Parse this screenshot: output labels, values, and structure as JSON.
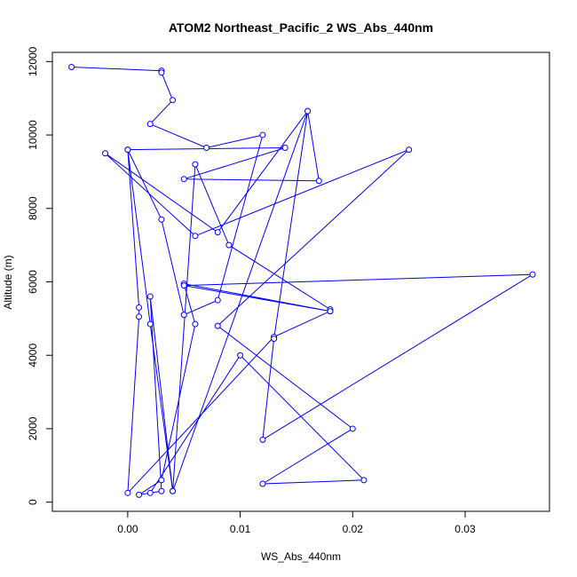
{
  "chart_data": {
    "type": "line",
    "title": "ATOM2 Northeast_Pacific_2 WS_Abs_440nm",
    "xlabel": "WS_Abs_440nm",
    "ylabel": "Altitude (m)",
    "xlim": [
      -0.0067,
      0.0375
    ],
    "ylim": [
      -250,
      12250
    ],
    "x_ticks": [
      0.0,
      0.01,
      0.02,
      0.03
    ],
    "x_tick_labels": [
      "0.00",
      "0.01",
      "0.02",
      "0.03"
    ],
    "y_ticks": [
      0,
      2000,
      4000,
      6000,
      8000,
      10000,
      12000
    ],
    "y_tick_labels": [
      "0",
      "2000",
      "4000",
      "6000",
      "8000",
      "10000",
      "12000"
    ],
    "grid": false,
    "series_color": "#0000ff",
    "markers": "open-circle",
    "series": [
      {
        "x": [
          -0.005,
          0.003,
          0.003,
          0.004,
          0.002,
          0.007,
          0.012,
          0.008,
          0.005,
          0.003,
          0.0,
          0.001,
          0.001,
          0.0,
          0.013,
          0.018,
          0.018,
          0.009,
          0.006,
          0.004,
          0.002,
          0.003,
          0.001,
          0.003,
          0.006,
          0.005,
          0.018,
          0.005,
          0.036,
          0.012,
          0.013,
          0.016,
          0.017,
          0.005,
          0.014,
          0.0,
          0.002,
          0.004,
          0.016,
          0.008,
          -0.002,
          0.006,
          0.025,
          0.008,
          0.02,
          0.012,
          0.021,
          0.01,
          0.002
        ],
        "y": [
          11850,
          11750,
          11700,
          10950,
          10300,
          9650,
          10000,
          5500,
          5100,
          7700,
          9600,
          5300,
          5050,
          250,
          4500,
          5200,
          5250,
          7000,
          9200,
          300,
          5600,
          300,
          200,
          600,
          4850,
          5950,
          5200,
          5900,
          6200,
          1700,
          4450,
          10650,
          8750,
          8800,
          9650,
          9600,
          4850,
          300,
          10650,
          7350,
          9500,
          7250,
          9600,
          4800,
          2000,
          500,
          600,
          4000,
          250
        ]
      }
    ]
  }
}
